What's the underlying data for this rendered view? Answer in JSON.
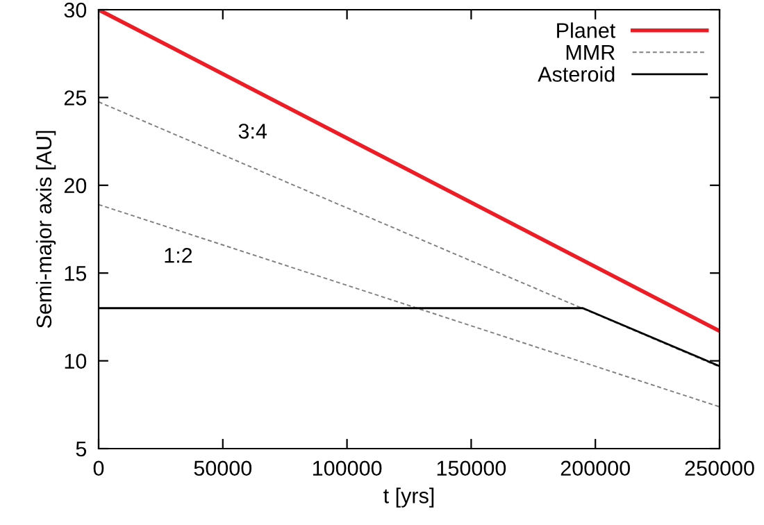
{
  "chart_data": {
    "type": "line",
    "xlabel": "t [yrs]",
    "ylabel": "Semi-major axis [AU]",
    "series": [
      {
        "name": "Planet",
        "color": "#ee1c25",
        "x": [
          0,
          125000,
          250000
        ],
        "values": [
          30,
          20.85,
          11.7
        ],
        "line_style": "solid"
      },
      {
        "name": "MMR",
        "color": "#808080",
        "x": [
          0,
          125000,
          250000
        ],
        "values": [
          24.75,
          17.2,
          9.65
        ],
        "line_style": "dashed"
      },
      {
        "color": "#808080",
        "x": [
          0,
          125000,
          250000
        ],
        "values": [
          18.9,
          13.15,
          7.38
        ],
        "line_style": "dashed"
      },
      {
        "name": "Asteroid",
        "color": "#000000",
        "x": [
          0,
          195000,
          250000
        ],
        "values": [
          13.0,
          13.0,
          9.7
        ],
        "line_style": "solid"
      }
    ],
    "annotations": [
      "3:4",
      "1:2"
    ],
    "xlim": [
      0,
      250000
    ],
    "xticks": [
      0,
      50000,
      100000,
      150000,
      200000,
      250000
    ],
    "ylim": [
      5,
      30
    ],
    "yticks": [
      5,
      10,
      15,
      20,
      25,
      30
    ],
    "grid": false,
    "legend": "top right",
    "marker": "none"
  }
}
